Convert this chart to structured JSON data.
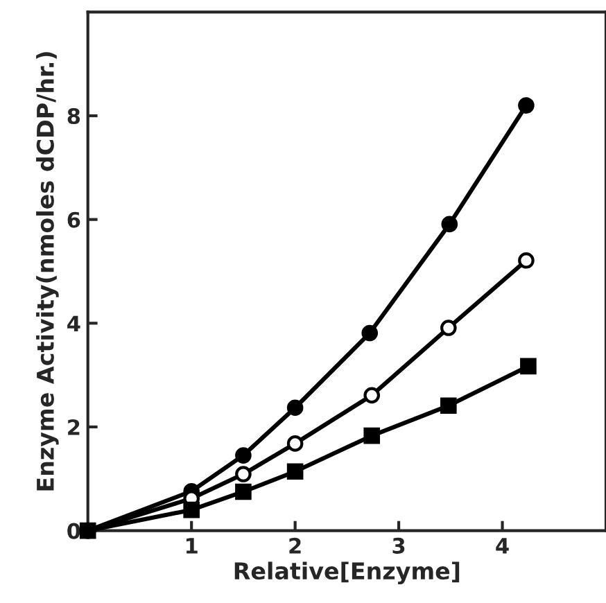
{
  "chart_data": {
    "type": "line",
    "xlabel": "Relative[Enzyme]",
    "ylabel": "Enzyme Activity(nmoles dCDP/hr.)",
    "xlim": [
      0,
      5
    ],
    "ylim": [
      0,
      10
    ],
    "xticks": [
      1,
      2,
      3,
      4
    ],
    "yticks": [
      0,
      2,
      4,
      6,
      8
    ],
    "grid": false,
    "line_style": "solid",
    "series": [
      {
        "color": "#000000",
        "marker": "circle",
        "x": [
          0,
          1,
          1.5,
          2,
          2.72,
          3.49,
          4.23
        ],
        "values": [
          0,
          0.76,
          1.45,
          2.37,
          3.81,
          5.91,
          8.2
        ]
      },
      {
        "color": "#000000",
        "marker": "circle_open",
        "x": [
          0,
          1,
          1.5,
          2,
          2.74,
          3.48,
          4.23
        ],
        "values": [
          0,
          0.62,
          1.09,
          1.68,
          2.61,
          3.91,
          5.21
        ]
      },
      {
        "color": "#000000",
        "marker": "square",
        "x": [
          0,
          1,
          1.5,
          2,
          2.74,
          3.48,
          4.25
        ],
        "values": [
          0,
          0.4,
          0.75,
          1.14,
          1.83,
          2.41,
          3.17
        ]
      }
    ]
  }
}
